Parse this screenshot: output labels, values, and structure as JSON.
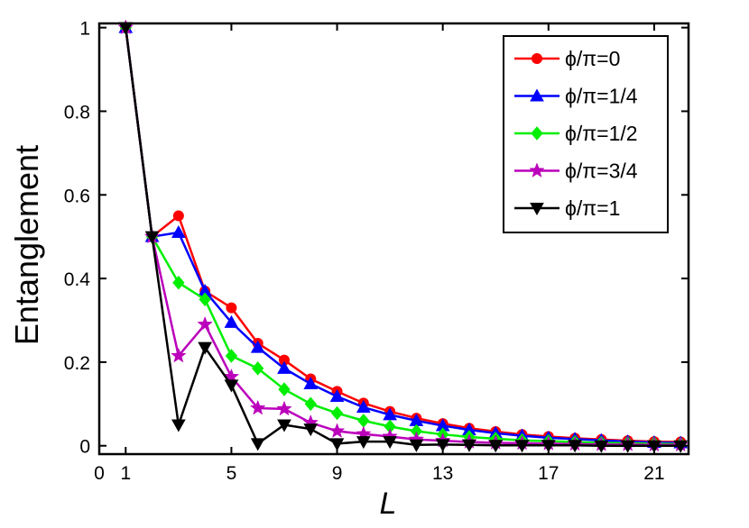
{
  "chart_data": {
    "type": "line",
    "xlabel": "L",
    "ylabel": "Entanglement",
    "xlim": [
      0,
      22.3
    ],
    "ylim": [
      -0.02,
      1.01
    ],
    "xticks": [
      "0",
      "1",
      "5",
      "9",
      "13",
      "17",
      "21"
    ],
    "xtick_values": [
      0,
      1,
      5,
      9,
      13,
      17,
      21
    ],
    "yticks": [
      "0",
      "0.2",
      "0.4",
      "0.6",
      "0.8",
      "1"
    ],
    "ytick_values": [
      0,
      0.2,
      0.4,
      0.6,
      0.8,
      1
    ],
    "legend_position": "top-right",
    "grid": false,
    "x": [
      1,
      2,
      3,
      4,
      5,
      6,
      7,
      8,
      9,
      10,
      11,
      12,
      13,
      14,
      15,
      16,
      17,
      18,
      19,
      20,
      21,
      22
    ],
    "series": [
      {
        "name": "ϕ/π=0",
        "color": "#ff0000",
        "marker": "circle",
        "values": [
          1.0,
          0.5,
          0.55,
          0.37,
          0.33,
          0.245,
          0.205,
          0.16,
          0.13,
          0.102,
          0.082,
          0.066,
          0.053,
          0.042,
          0.034,
          0.027,
          0.022,
          0.018,
          0.015,
          0.012,
          0.01,
          0.009
        ]
      },
      {
        "name": "ϕ/π=1/4",
        "color": "#0000ff",
        "marker": "triangle-up",
        "values": [
          1.0,
          0.5,
          0.51,
          0.37,
          0.295,
          0.235,
          0.185,
          0.148,
          0.118,
          0.092,
          0.074,
          0.06,
          0.048,
          0.038,
          0.03,
          0.024,
          0.019,
          0.016,
          0.013,
          0.01,
          0.008,
          0.007
        ]
      },
      {
        "name": "ϕ/π=1/2",
        "color": "#00ee00",
        "marker": "diamond",
        "values": [
          1.0,
          0.5,
          0.39,
          0.35,
          0.215,
          0.185,
          0.135,
          0.1,
          0.078,
          0.06,
          0.046,
          0.035,
          0.027,
          0.021,
          0.017,
          0.013,
          0.011,
          0.009,
          0.007,
          0.006,
          0.005,
          0.004
        ]
      },
      {
        "name": "ϕ/π=3/4",
        "color": "#bb00bb",
        "marker": "star",
        "values": [
          1.0,
          0.5,
          0.215,
          0.29,
          0.165,
          0.09,
          0.088,
          0.055,
          0.035,
          0.028,
          0.022,
          0.015,
          0.012,
          0.009,
          0.007,
          0.006,
          0.005,
          0.004,
          0.003,
          0.003,
          0.002,
          0.002
        ]
      },
      {
        "name": "ϕ/π=1",
        "color": "#000000",
        "marker": "triangle-down",
        "values": [
          1.0,
          0.5,
          0.05,
          0.235,
          0.145,
          0.005,
          0.05,
          0.04,
          0.005,
          0.01,
          0.01,
          0.002,
          0.003,
          0.002,
          0.001,
          0.001,
          0.001,
          0.001,
          0.0,
          0.0,
          0.0,
          0.0
        ]
      }
    ]
  }
}
